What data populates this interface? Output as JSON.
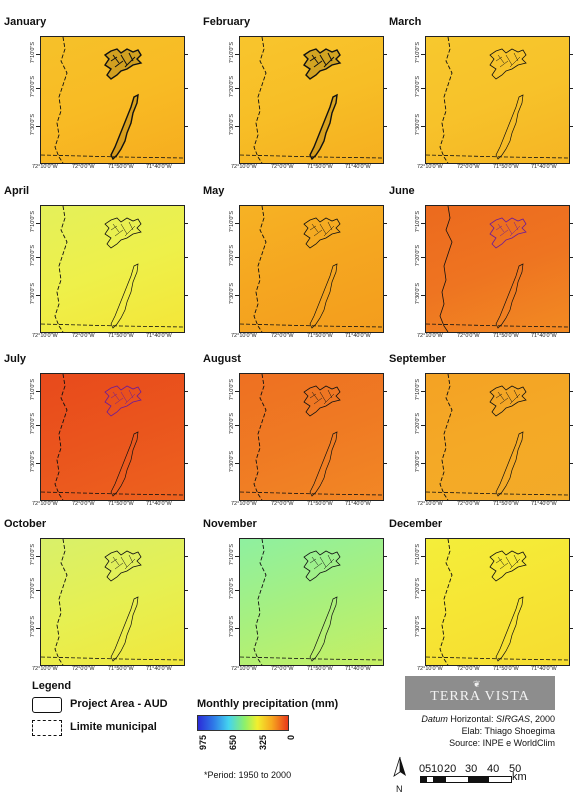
{
  "maps": [
    {
      "month": "January",
      "c0": "#f6c12a",
      "c1": "#f8bb24",
      "c2": "#f6ad1f"
    },
    {
      "month": "February",
      "c0": "#f8c52d",
      "c1": "#f7be26",
      "c2": "#f5af20"
    },
    {
      "month": "March",
      "c0": "#f7c82e",
      "c1": "#f7c22a",
      "c2": "#f5b524"
    },
    {
      "month": "April",
      "c0": "#e4f05a",
      "c1": "#eef04a",
      "c2": "#f4e638"
    },
    {
      "month": "May",
      "c0": "#f6b224",
      "c1": "#f5a620",
      "c2": "#f39d1d"
    },
    {
      "month": "June",
      "c0": "#ec6a1e",
      "c1": "#ee7421",
      "c2": "#f28a22"
    },
    {
      "month": "July",
      "c0": "#e84a1c",
      "c1": "#ea551d",
      "c2": "#ed621f"
    },
    {
      "month": "August",
      "c0": "#ee7022",
      "c1": "#ef7a23",
      "c2": "#f28725"
    },
    {
      "month": "September",
      "c0": "#f4a224",
      "c1": "#f4a926",
      "c2": "#f3ab28"
    },
    {
      "month": "October",
      "c0": "#d8f06a",
      "c1": "#e6f052",
      "c2": "#f1e73c"
    },
    {
      "month": "November",
      "c0": "#8ef0a0",
      "c1": "#a8f07e",
      "c2": "#c6ef62"
    },
    {
      "month": "December",
      "c0": "#f4ee3a",
      "c1": "#f6e534",
      "c2": "#f6dc30"
    }
  ],
  "axes": {
    "y_ticks": [
      "7°10'0\"S",
      "7°20'0\"S",
      "7°30'0\"S"
    ],
    "x_ticks": [
      "72°10'0\"W",
      "72°0'0\"W",
      "71°50'0\"W",
      "71°40'0\"W"
    ]
  },
  "legend": {
    "title": "Legend",
    "project_area": "Project Area - AUD",
    "limite_municipal": "Limite municipal",
    "precip_title": "Monthly precipitation (mm)",
    "colorbar_labels": [
      "975",
      "650",
      "325",
      "0"
    ],
    "period": "*Period: 1950 to 2000",
    "colorbar_colors": [
      "#2b2bd8",
      "#2f7de8",
      "#44d4f0",
      "#8ef06a",
      "#f2ef2e",
      "#f7a81f",
      "#e8391a"
    ]
  },
  "credits": {
    "logo": "TERRA VISTA",
    "datum_prefix": "Datum",
    "datum_rest": " Horizontal: ",
    "datum_sirgas": "SIRGAS",
    "datum_year": ", 2000",
    "elab": "Elab: Thiago Shoegima",
    "source": "Source: INPE e WorldClim"
  },
  "scale": {
    "north": "N",
    "numbers": [
      "0",
      "5",
      "10",
      "20",
      "30",
      "40",
      "50"
    ],
    "unit": "km"
  }
}
